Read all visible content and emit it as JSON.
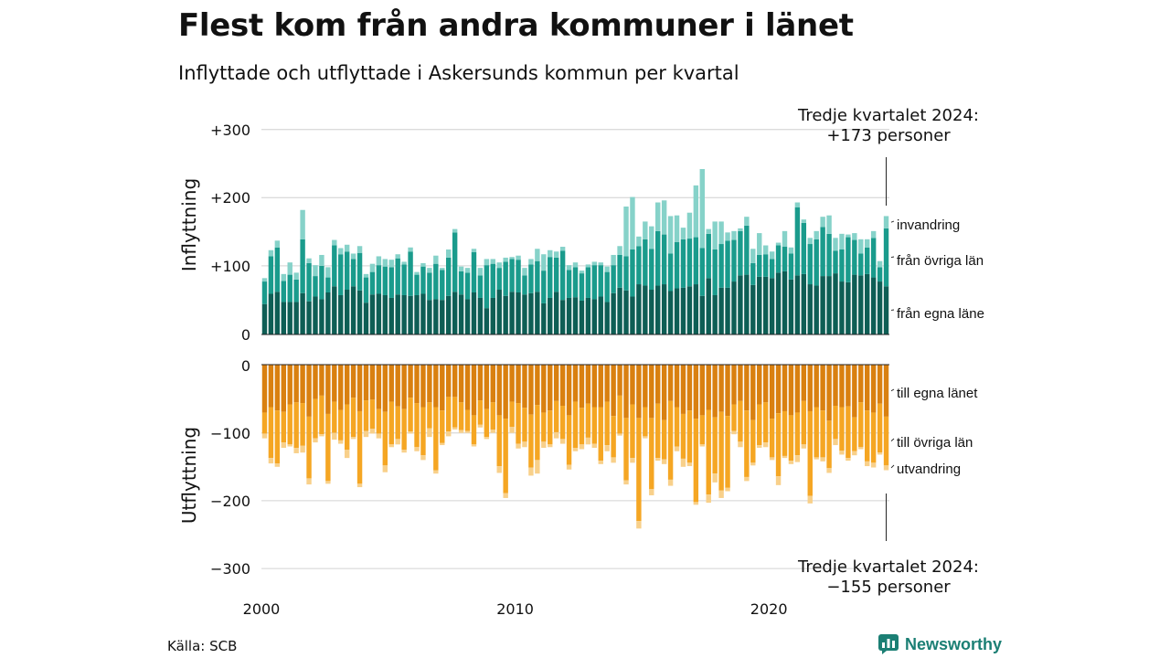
{
  "title": "Flest kom från andra kommuner i länet",
  "subtitle": "Inflyttade och utflyttade i Askersunds kommun per kvartal",
  "source": "Källa: SCB",
  "brand": "Newsworthy",
  "colors": {
    "in_same_county": "#0e5e55",
    "in_other_counties": "#1a9b8c",
    "in_immigration": "#86d2c9",
    "out_same_county": "#d98010",
    "out_other_counties": "#f5a623",
    "out_emigration": "#f8d08a"
  },
  "chart_data": {
    "type": "bar",
    "stacked": true,
    "x_first_quarter": "2000 Q1",
    "x_last_quarter": "2024 Q3",
    "x_ticks": [
      "2000",
      "2010",
      "2020"
    ],
    "upper_axis_title": "Inflyttning",
    "lower_axis_title": "Utflyttning",
    "upper_ticks": [
      "0",
      "+100",
      "+200",
      "+300"
    ],
    "lower_ticks": [
      "0",
      "−100",
      "−200",
      "−300"
    ],
    "upper_ylim": [
      0,
      300
    ],
    "lower_ylim": [
      -300,
      0
    ],
    "grid": true,
    "upper_annotation": {
      "line1": "Tredje kvartalet 2024:",
      "line2": "+173 personer"
    },
    "lower_annotation": {
      "line1": "Tredje kvartalet 2024:",
      "line2": "−155 personer"
    },
    "inflow_series": [
      {
        "name": "från egna läne",
        "values": [
          44,
          59,
          62,
          47,
          47,
          47,
          60,
          48,
          55,
          51,
          61,
          70,
          57,
          65,
          70,
          64,
          46,
          58,
          59,
          57,
          53,
          58,
          57,
          56,
          57,
          59,
          50,
          51,
          50,
          56,
          62,
          58,
          51,
          61,
          53,
          38,
          53,
          65,
          56,
          62,
          61,
          58,
          60,
          62,
          45,
          53,
          62,
          50,
          53,
          54,
          49,
          53,
          51,
          55,
          47,
          60,
          68,
          64,
          55,
          73,
          71,
          65,
          71,
          73,
          63,
          67,
          68,
          70,
          73,
          56,
          82,
          57,
          68,
          68,
          77,
          86,
          87,
          72,
          84,
          84,
          82,
          90,
          92,
          80,
          86,
          88,
          73,
          71,
          85,
          85,
          89,
          77,
          76,
          87,
          86,
          88,
          83,
          77,
          70
        ]
      },
      {
        "name": "från övriga län",
        "values": [
          33,
          55,
          65,
          31,
          40,
          33,
          79,
          56,
          30,
          49,
          22,
          60,
          60,
          56,
          40,
          55,
          37,
          33,
          42,
          42,
          45,
          53,
          45,
          65,
          30,
          40,
          40,
          52,
          44,
          56,
          87,
          34,
          39,
          59,
          33,
          63,
          50,
          32,
          50,
          48,
          48,
          28,
          42,
          45,
          48,
          60,
          50,
          72,
          41,
          44,
          40,
          45,
          50,
          46,
          44,
          41,
          48,
          50,
          69,
          56,
          68,
          60,
          80,
          73,
          55,
          68,
          71,
          70,
          69,
          70,
          65,
          67,
          64,
          69,
          61,
          65,
          72,
          32,
          32,
          33,
          28,
          40,
          36,
          38,
          100,
          75,
          59,
          68,
          72,
          62,
          33,
          47,
          66,
          51,
          32,
          39,
          58,
          21,
          85
        ]
      },
      {
        "name": "invandring",
        "values": [
          5,
          9,
          10,
          10,
          18,
          10,
          43,
          7,
          16,
          16,
          15,
          8,
          9,
          10,
          8,
          10,
          5,
          12,
          13,
          11,
          11,
          6,
          4,
          6,
          4,
          5,
          7,
          12,
          3,
          12,
          5,
          7,
          7,
          5,
          11,
          9,
          7,
          8,
          6,
          3,
          6,
          11,
          8,
          18,
          24,
          10,
          9,
          6,
          7,
          7,
          4,
          4,
          5,
          4,
          8,
          15,
          13,
          73,
          77,
          14,
          26,
          33,
          42,
          50,
          55,
          39,
          17,
          38,
          76,
          116,
          7,
          41,
          33,
          12,
          13,
          4,
          13,
          21,
          32,
          13,
          11,
          4,
          23,
          9,
          7,
          5,
          9,
          12,
          15,
          27,
          19,
          23,
          4,
          10,
          21,
          12,
          10,
          9,
          18
        ]
      }
    ],
    "outflow_series": [
      {
        "name": "till egna länet",
        "values": [
          -70,
          -62,
          -67,
          -69,
          -58,
          -55,
          -56,
          -76,
          -50,
          -45,
          -72,
          -54,
          -66,
          -58,
          -48,
          -68,
          -52,
          -51,
          -65,
          -69,
          -54,
          -61,
          -65,
          -48,
          -56,
          -62,
          -55,
          -62,
          -67,
          -47,
          -47,
          -55,
          -66,
          -74,
          -52,
          -65,
          -55,
          -74,
          -79,
          -54,
          -56,
          -63,
          -73,
          -59,
          -70,
          -67,
          -53,
          -60,
          -74,
          -54,
          -63,
          -57,
          -62,
          -62,
          -54,
          -75,
          -45,
          -78,
          -58,
          -78,
          -62,
          -78,
          -57,
          -81,
          -53,
          -62,
          -72,
          -67,
          -79,
          -74,
          -66,
          -77,
          -69,
          -75,
          -58,
          -53,
          -67,
          -81,
          -58,
          -55,
          -79,
          -71,
          -68,
          -74,
          -70,
          -53,
          -68,
          -62,
          -67,
          -82,
          -60,
          -62,
          -61,
          -77,
          -55,
          -67,
          -70,
          -57,
          -76
        ]
      },
      {
        "name": "till övriga län",
        "values": [
          -31,
          -75,
          -78,
          -45,
          -59,
          -67,
          -63,
          -91,
          -58,
          -57,
          -99,
          -46,
          -45,
          -67,
          -58,
          -107,
          -45,
          -43,
          -36,
          -79,
          -63,
          -48,
          -60,
          -50,
          -65,
          -71,
          -38,
          -93,
          -48,
          -51,
          -45,
          -41,
          -31,
          -43,
          -36,
          -41,
          -40,
          -75,
          -110,
          -37,
          -60,
          -50,
          -78,
          -81,
          -43,
          -50,
          -46,
          -49,
          -73,
          -68,
          -54,
          -50,
          -54,
          -79,
          -64,
          -61,
          -56,
          -92,
          -79,
          -152,
          -43,
          -105,
          -80,
          -58,
          -116,
          -58,
          -66,
          -77,
          -123,
          -43,
          -125,
          -83,
          -116,
          -106,
          -39,
          -60,
          -98,
          -63,
          -60,
          -59,
          -57,
          -93,
          -66,
          -67,
          -63,
          -64,
          -125,
          -74,
          -69,
          -70,
          -49,
          -64,
          -76,
          -50,
          -66,
          -75,
          -74,
          -72,
          -72
        ]
      },
      {
        "name": "utvandring",
        "values": [
          -7,
          -8,
          -5,
          -8,
          -3,
          -8,
          -10,
          -9,
          -6,
          -3,
          -4,
          -10,
          -5,
          -12,
          -3,
          -5,
          -9,
          -7,
          -7,
          -10,
          -4,
          -8,
          -4,
          -3,
          -6,
          -7,
          -13,
          -5,
          -3,
          -7,
          -3,
          -4,
          -3,
          -3,
          -4,
          -3,
          -5,
          -10,
          -7,
          -9,
          -7,
          -8,
          -12,
          -20,
          -9,
          -4,
          -9,
          -7,
          -7,
          -5,
          -7,
          -10,
          -6,
          -5,
          -9,
          -8,
          -3,
          -6,
          -7,
          -11,
          -3,
          -9,
          -4,
          -7,
          -9,
          -7,
          -12,
          -5,
          -4,
          -3,
          -12,
          -13,
          -11,
          -5,
          -5,
          -8,
          -6,
          -4,
          -4,
          -7,
          -4,
          -13,
          -3,
          -5,
          -10,
          -6,
          -11,
          -3,
          -6,
          -7,
          -9,
          -6,
          -4,
          -6,
          -3,
          -7,
          -7,
          -3,
          -7
        ]
      }
    ],
    "legend_labels_order": [
      "invandring",
      "från övriga län",
      "från egna läne",
      "till egna länet",
      "till övriga län",
      "utvandring"
    ]
  }
}
